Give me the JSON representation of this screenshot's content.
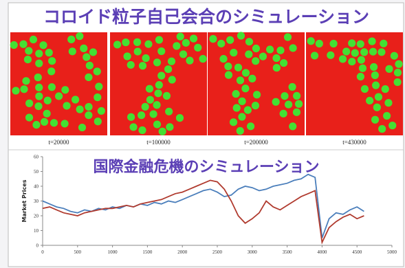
{
  "header": {
    "title": "コロイド粒子自己会合のシミュレーション"
  },
  "panels": [
    {
      "label": "t=20000"
    },
    {
      "label": "t=100000"
    },
    {
      "label": "t=200000"
    },
    {
      "label": "t=430000"
    }
  ],
  "chart_data": {
    "type": "line",
    "title": "国際金融危機のシミュレーション",
    "y_label": "Market Prices",
    "x": [
      0,
      100,
      200,
      300,
      400,
      500,
      600,
      700,
      800,
      900,
      1000,
      1100,
      1200,
      1300,
      1400,
      1500,
      1600,
      1700,
      1800,
      1900,
      2000,
      2100,
      2200,
      2300,
      2400,
      2500,
      2600,
      2700,
      2800,
      2900,
      3000,
      3100,
      3200,
      3300,
      3400,
      3500,
      3600,
      3700,
      3800,
      3900,
      4000,
      4100,
      4200,
      4300,
      4400,
      4500,
      4600
    ],
    "series": [
      {
        "color": "#4a7ebb",
        "values": [
          30,
          28,
          26,
          25,
          23,
          22,
          24,
          23,
          25,
          24,
          26,
          25,
          27,
          26,
          28,
          27,
          29,
          28,
          30,
          29,
          31,
          33,
          35,
          37,
          38,
          36,
          33,
          34,
          38,
          40,
          39,
          37,
          38,
          40,
          41,
          42,
          44,
          45,
          48,
          46,
          5,
          18,
          22,
          21,
          24,
          26,
          23
        ]
      },
      {
        "color": "#b03a2e",
        "values": [
          25,
          26,
          24,
          22,
          21,
          20,
          22,
          23,
          24,
          25,
          25,
          26,
          27,
          26,
          28,
          29,
          30,
          31,
          33,
          35,
          36,
          38,
          40,
          42,
          44,
          43,
          38,
          30,
          20,
          15,
          18,
          22,
          30,
          26,
          24,
          27,
          30,
          33,
          35,
          37,
          2,
          12,
          16,
          19,
          21,
          18,
          20
        ]
      }
    ],
    "xlim": [
      0,
      5000
    ],
    "xticks": [
      0,
      500,
      1000,
      1500,
      2000,
      2500,
      3000,
      3500,
      4000,
      4500,
      5000
    ],
    "ylim": [
      0,
      60
    ],
    "yticks": [
      0,
      10,
      20,
      30,
      40,
      50,
      60
    ]
  }
}
